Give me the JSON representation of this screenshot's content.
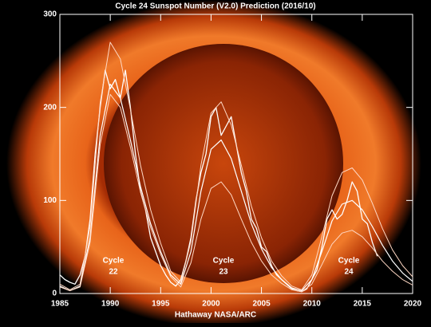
{
  "chart_data": {
    "type": "line",
    "title": "Cycle 24 Sunspot Number (V2.0) Prediction (2016/10)",
    "x_label": "Hathaway  NASA/ARC",
    "xlim": [
      1985,
      2020
    ],
    "xticks": [
      1985,
      1990,
      1995,
      2000,
      2005,
      2010,
      2015,
      2020
    ],
    "ylim": [
      0,
      300
    ],
    "yticks": [
      0,
      100,
      200,
      300
    ],
    "series": [
      {
        "color": "#ffffff",
        "width": 1.3,
        "x": [
          1985.0,
          1985.5,
          1986.0,
          1986.5,
          1987.0,
          1987.5,
          1988.0,
          1988.5,
          1989.0,
          1989.5,
          1990.0,
          1990.5,
          1991.0,
          1991.5,
          1992.0,
          1992.5,
          1993.0,
          1993.5,
          1994.0,
          1994.5,
          1995.0,
          1995.5,
          1996.0,
          1996.5,
          1997.0,
          1997.5,
          1998.0,
          1998.5,
          1999.0,
          1999.5,
          2000.0,
          2000.5,
          2001.0,
          2001.5,
          2002.0,
          2002.5,
          2003.0,
          2003.5,
          2004.0,
          2004.5,
          2005.0,
          2005.5,
          2006.0,
          2006.5,
          2007.0,
          2007.5,
          2008.0,
          2008.5,
          2009.0,
          2009.5,
          2010.0,
          2010.5,
          2011.0,
          2011.5,
          2012.0,
          2012.5,
          2013.0,
          2013.5,
          2014.0,
          2014.5,
          2015.0,
          2015.5,
          2016.0,
          2016.5
        ],
        "values": [
          20,
          15,
          12,
          10,
          20,
          40,
          80,
          150,
          200,
          240,
          220,
          230,
          210,
          240,
          200,
          150,
          110,
          90,
          60,
          45,
          30,
          20,
          12,
          8,
          15,
          35,
          60,
          100,
          130,
          150,
          190,
          200,
          170,
          180,
          190,
          160,
          130,
          110,
          80,
          70,
          50,
          45,
          30,
          20,
          15,
          10,
          5,
          3,
          2,
          5,
          15,
          25,
          50,
          80,
          90,
          80,
          85,
          100,
          120,
          110,
          80,
          75,
          55,
          40
        ]
      },
      {
        "color": "#ffd8c4",
        "width": 1,
        "x": [
          1985,
          1986,
          1987,
          1988,
          1989,
          1990,
          1991,
          1992,
          1993,
          1994,
          1995,
          1996,
          1997,
          1998,
          1999,
          2000,
          2001,
          2002,
          2003,
          2004,
          2005,
          2006,
          2007,
          2008,
          2009,
          2010,
          2011,
          2012,
          2013,
          2014,
          2015,
          2016,
          2017,
          2018,
          2019,
          2020
        ],
        "values": [
          10,
          4,
          10,
          72,
          205,
          270,
          252,
          198,
          138,
          90,
          54,
          24,
          12,
          56,
          138,
          194,
          206,
          181,
          138,
          94,
          60,
          35,
          19,
          8,
          4,
          20,
          61,
          105,
          130,
          135,
          122,
          97,
          70,
          47,
          30,
          18
        ]
      },
      {
        "color": "#ffffff",
        "width": 1.2,
        "x": [
          1985,
          1986,
          1987,
          1988,
          1989,
          1990,
          1991,
          1992,
          1993,
          1994,
          1995,
          1996,
          1997,
          1998,
          1999,
          2000,
          2001,
          2002,
          2003,
          2004,
          2005,
          2006,
          2007,
          2008,
          2009,
          2010,
          2011,
          2012,
          2013,
          2014,
          2015,
          2016,
          2017,
          2018,
          2019,
          2020
        ],
        "values": [
          8,
          3,
          8,
          60,
          170,
          225,
          210,
          165,
          115,
          75,
          45,
          20,
          10,
          45,
          110,
          155,
          165,
          145,
          110,
          75,
          48,
          28,
          15,
          6,
          3,
          15,
          45,
          78,
          96,
          100,
          90,
          72,
          52,
          35,
          22,
          13
        ]
      },
      {
        "color": "#ffd8c4",
        "width": 1,
        "x": [
          1985,
          1986,
          1987,
          1988,
          1989,
          1990,
          1991,
          1992,
          1993,
          1994,
          1995,
          1996,
          1997,
          1998,
          1999,
          2000,
          2001,
          2002,
          2003,
          2004,
          2005,
          2006,
          2007,
          2008,
          2009,
          2010,
          2011,
          2012,
          2013,
          2014,
          2015,
          2016,
          2017,
          2018,
          2019,
          2020
        ],
        "values": [
          7,
          3,
          7,
          55,
          160,
          214,
          200,
          157,
          109,
          71,
          42,
          18,
          7,
          33,
          80,
          113,
          120,
          106,
          80,
          55,
          35,
          20,
          11,
          4,
          2,
          10,
          31,
          53,
          65,
          68,
          61,
          49,
          35,
          24,
          15,
          9
        ]
      }
    ],
    "annotations": [
      [
        "Cycle",
        "22"
      ],
      [
        "Cycle",
        "23"
      ],
      [
        "Cycle",
        "24"
      ]
    ]
  }
}
